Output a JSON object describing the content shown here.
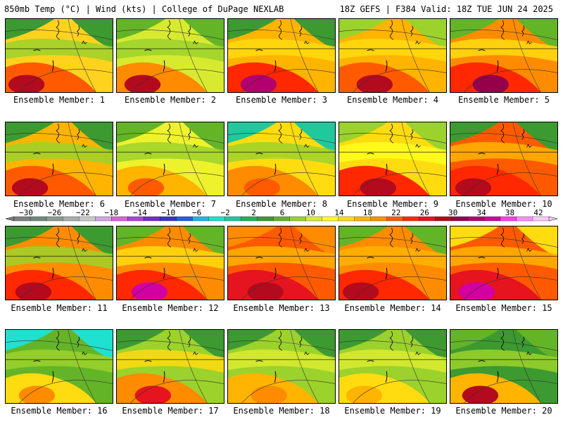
{
  "header": {
    "left": "850mb Temp (°C) | Wind (kts) | College of DuPage NEXLAB",
    "right": "18Z GEFS | F384 Valid: 18Z TUE JUN 24 2025"
  },
  "panels": [
    {
      "label": "Ensemble Member: 1"
    },
    {
      "label": "Ensemble Member: 2"
    },
    {
      "label": "Ensemble Member: 3"
    },
    {
      "label": "Ensemble Member: 4"
    },
    {
      "label": "Ensemble Member: 5"
    },
    {
      "label": "Ensemble Member: 6"
    },
    {
      "label": "Ensemble Member: 7"
    },
    {
      "label": "Ensemble Member: 8"
    },
    {
      "label": "Ensemble Member: 9"
    },
    {
      "label": "Ensemble Member: 10"
    },
    {
      "label": "Ensemble Member: 11"
    },
    {
      "label": "Ensemble Member: 12"
    },
    {
      "label": "Ensemble Member: 13"
    },
    {
      "label": "Ensemble Member: 14"
    },
    {
      "label": "Ensemble Member: 15"
    },
    {
      "label": "Ensemble Member: 16"
    },
    {
      "label": "Ensemble Member: 17"
    },
    {
      "label": "Ensemble Member: 18"
    },
    {
      "label": "Ensemble Member: 19"
    },
    {
      "label": "Ensemble Member: 20"
    }
  ],
  "colorbar": {
    "labels": [
      "−30",
      "−26",
      "−22",
      "−18",
      "−14",
      "−10",
      "−6",
      "−2",
      "2",
      "6",
      "10",
      "14",
      "18",
      "22",
      "26",
      "30",
      "34",
      "38",
      "42"
    ],
    "colors": [
      "#808080",
      "#6f8a7c",
      "#8c9c94",
      "#a9aeab",
      "#c9c9c9",
      "#cfa6e6",
      "#e05ce0",
      "#b040e0",
      "#7a2ad0",
      "#3636c8",
      "#2060e6",
      "#20b4ee",
      "#20e0d0",
      "#20c89c",
      "#1eb45a",
      "#3c9a30",
      "#64b428",
      "#9cd22c",
      "#dcec30",
      "#ffff1e",
      "#ffdc10",
      "#ffb400",
      "#ff8c00",
      "#ff5a00",
      "#ff2800",
      "#e6141e",
      "#b40a1e",
      "#96004a",
      "#b4006e",
      "#d200a0",
      "#ff3cf0",
      "#ff8cff",
      "#ffc8ff"
    ]
  }
}
